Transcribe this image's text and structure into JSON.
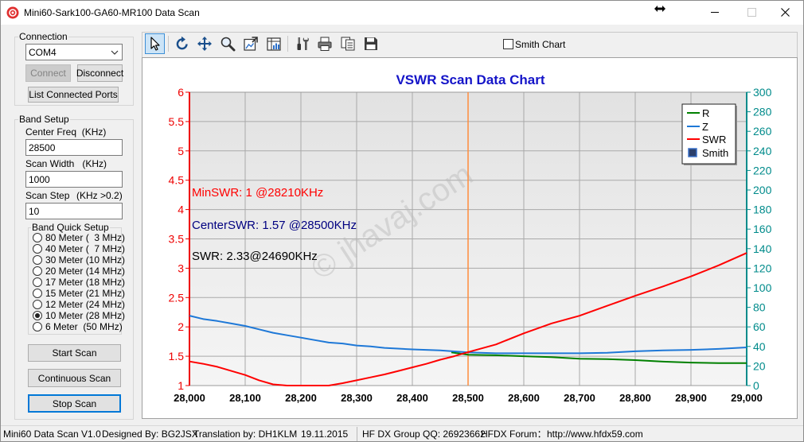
{
  "window": {
    "title": "Mini60-Sark100-GA60-MR100 Data Scan"
  },
  "connection": {
    "group_label": "Connection",
    "port": "COM4",
    "connect_label": "Connect",
    "disconnect_label": "Disconnect",
    "list_ports_label": "List Connected Ports"
  },
  "band_setup": {
    "group_label": "Band Setup",
    "center_freq_label": "Center Freq  (KHz)",
    "center_freq": "28500",
    "scan_width_label": "Scan Width   (KHz)",
    "scan_width": "1000",
    "scan_step_label": "Scan Step",
    "scan_step_hint": "(KHz >0.2)",
    "scan_step": "10",
    "quick_setup_label": "Band Quick Setup",
    "bands": [
      {
        "label": "80 Meter (  3 MHz)",
        "selected": false
      },
      {
        "label": "40 Meter (  7 MHz)",
        "selected": false
      },
      {
        "label": "30 Meter (10 MHz)",
        "selected": false
      },
      {
        "label": "20 Meter (14 MHz)",
        "selected": false
      },
      {
        "label": "17 Meter (18 MHz)",
        "selected": false
      },
      {
        "label": "15 Meter (21 MHz)",
        "selected": false
      },
      {
        "label": "12 Meter (24 MHz)",
        "selected": false
      },
      {
        "label": "10 Meter (28 MHz)",
        "selected": true
      },
      {
        "label": "6 Meter  (50 MHz)",
        "selected": false
      }
    ]
  },
  "actions": {
    "start_label": "Start Scan",
    "continuous_label": "Continuous Scan",
    "stop_label": "Stop Scan"
  },
  "toolbar": {
    "icons": [
      "pointer-icon",
      "undo-icon",
      "move-icon",
      "zoom-icon",
      "export-image-icon",
      "chart-data-icon",
      "tools-icon",
      "print-icon",
      "copy-icon",
      "save-icon"
    ],
    "active_tool": "pointer-icon",
    "smith_chart_label": "Smith Chart",
    "smith_chart_checked": false
  },
  "chart_data": {
    "type": "line",
    "title": "VSWR Scan Data Chart",
    "title_color": "#1414c8",
    "x_axis": {
      "range": [
        28000,
        29000
      ],
      "ticks": [
        28000,
        28100,
        28200,
        28300,
        28400,
        28500,
        28600,
        28700,
        28800,
        28900,
        29000
      ],
      "tick_labels": [
        "28,000",
        "28,100",
        "28,200",
        "28,300",
        "28,400",
        "28,500",
        "28,600",
        "28,700",
        "28,800",
        "28,900",
        "29,000"
      ]
    },
    "y_left": {
      "range": [
        1,
        6
      ],
      "ticks": [
        1,
        1.5,
        2,
        2.5,
        3,
        3.5,
        4,
        4.5,
        5,
        5.5,
        6
      ],
      "tick_labels": [
        "1",
        "1.5",
        "2",
        "2.5",
        "3",
        "3.5",
        "4",
        "4.5",
        "5",
        "5.5",
        "6"
      ],
      "color": "#ee0000"
    },
    "y_right": {
      "range": [
        0,
        300
      ],
      "ticks": [
        0,
        20,
        40,
        60,
        80,
        100,
        120,
        140,
        160,
        180,
        200,
        220,
        240,
        260,
        280,
        300
      ],
      "tick_labels": [
        "0",
        "20",
        "40",
        "60",
        "80",
        "100",
        "120",
        "140",
        "160",
        "180",
        "200",
        "220",
        "240",
        "260",
        "280",
        "300"
      ],
      "color": "#008b8b"
    },
    "grid": true,
    "legend_position": "top-right",
    "legend": [
      {
        "label": "R",
        "color": "#008000",
        "symbol": "line"
      },
      {
        "label": "Z",
        "color": "#1e78d7",
        "symbol": "line"
      },
      {
        "label": "SWR",
        "color": "#ff0000",
        "symbol": "line"
      },
      {
        "label": "Smith",
        "color": "#2b3f6b",
        "symbol": "square"
      }
    ],
    "series": [
      {
        "name": "R",
        "axis": "right",
        "color": "#008000",
        "points": [
          [
            28470,
            34
          ],
          [
            28500,
            31.5
          ],
          [
            28550,
            31
          ],
          [
            28600,
            30
          ],
          [
            28650,
            29
          ],
          [
            28700,
            27.5
          ],
          [
            28750,
            27
          ],
          [
            28800,
            26
          ],
          [
            28850,
            24.5
          ],
          [
            28900,
            23.5
          ],
          [
            28950,
            23
          ],
          [
            29000,
            23
          ]
        ]
      },
      {
        "name": "Z",
        "axis": "right",
        "color": "#1e78d7",
        "points": [
          [
            28000,
            71.5
          ],
          [
            28025,
            68
          ],
          [
            28050,
            66
          ],
          [
            28075,
            63.5
          ],
          [
            28100,
            61
          ],
          [
            28125,
            57.5
          ],
          [
            28150,
            54
          ],
          [
            28175,
            51.5
          ],
          [
            28200,
            49
          ],
          [
            28225,
            46.5
          ],
          [
            28250,
            44
          ],
          [
            28275,
            43
          ],
          [
            28300,
            41
          ],
          [
            28325,
            40
          ],
          [
            28350,
            38.5
          ],
          [
            28400,
            37
          ],
          [
            28450,
            36
          ],
          [
            28500,
            34
          ],
          [
            28550,
            33
          ],
          [
            28600,
            33
          ],
          [
            28650,
            33
          ],
          [
            28700,
            33
          ],
          [
            28750,
            33.5
          ],
          [
            28800,
            35
          ],
          [
            28850,
            36
          ],
          [
            28900,
            36.5
          ],
          [
            28950,
            37.5
          ],
          [
            29000,
            39
          ]
        ]
      },
      {
        "name": "SWR",
        "axis": "left",
        "color": "#ff0000",
        "points": [
          [
            28000,
            1.41
          ],
          [
            28025,
            1.37
          ],
          [
            28050,
            1.32
          ],
          [
            28075,
            1.25
          ],
          [
            28100,
            1.18
          ],
          [
            28125,
            1.09
          ],
          [
            28150,
            1.02
          ],
          [
            28175,
            1.0
          ],
          [
            28200,
            1.0
          ],
          [
            28225,
            1.0
          ],
          [
            28250,
            1.0
          ],
          [
            28275,
            1.04
          ],
          [
            28300,
            1.09
          ],
          [
            28325,
            1.14
          ],
          [
            28350,
            1.19
          ],
          [
            28375,
            1.25
          ],
          [
            28400,
            1.31
          ],
          [
            28425,
            1.37
          ],
          [
            28450,
            1.44
          ],
          [
            28475,
            1.5
          ],
          [
            28500,
            1.57
          ],
          [
            28550,
            1.7
          ],
          [
            28600,
            1.89
          ],
          [
            28650,
            2.06
          ],
          [
            28700,
            2.19
          ],
          [
            28750,
            2.36
          ],
          [
            28800,
            2.53
          ],
          [
            28850,
            2.69
          ],
          [
            28900,
            2.86
          ],
          [
            28950,
            3.05
          ],
          [
            29000,
            3.26
          ]
        ]
      }
    ],
    "center_marker": {
      "x": 28500,
      "color": "#ff8c3c"
    },
    "annotations": [
      {
        "text": "MinSWR: 1 @28210KHz",
        "color": "#ff0000"
      },
      {
        "text": "CenterSWR: 1.57 @28500KHz",
        "color": "#000080"
      },
      {
        "text": "SWR: 2.33@24690KHz",
        "color": "#000000"
      }
    ],
    "watermark": "© jhavaj.com"
  },
  "status_bar": {
    "version": "Mini60 Data Scan V1.0",
    "designer": "Designed By: BG2JSX",
    "translator": "Translation by: DH1KLM",
    "date": "19.11.2015",
    "group": "HF DX Group QQ: 26923662",
    "forum_label": "HFDX Forum：",
    "forum_url": "http://www.hfdx59.com"
  },
  "colors": {
    "accent_focus": "#0078d7",
    "app_icon": "#e03030"
  }
}
